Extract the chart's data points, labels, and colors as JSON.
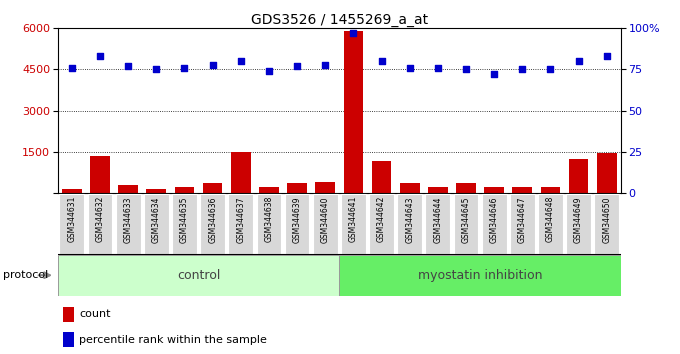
{
  "title": "GDS3526 / 1455269_a_at",
  "samples": [
    "GSM344631",
    "GSM344632",
    "GSM344633",
    "GSM344634",
    "GSM344635",
    "GSM344636",
    "GSM344637",
    "GSM344638",
    "GSM344639",
    "GSM344640",
    "GSM344641",
    "GSM344642",
    "GSM344643",
    "GSM344644",
    "GSM344645",
    "GSM344646",
    "GSM344647",
    "GSM344648",
    "GSM344649",
    "GSM344650"
  ],
  "counts": [
    150,
    1350,
    300,
    150,
    200,
    350,
    1500,
    200,
    350,
    400,
    5900,
    1150,
    350,
    200,
    350,
    200,
    200,
    200,
    1250,
    1450
  ],
  "percentile_ranks": [
    76,
    83,
    77,
    75,
    76,
    78,
    80,
    74,
    77,
    78,
    97,
    80,
    76,
    76,
    75,
    72,
    75,
    75,
    80,
    83
  ],
  "control_color": "#ccffcc",
  "myostatin_color": "#66ee66",
  "bar_color": "#cc0000",
  "dot_color": "#0000cc",
  "yticks_left": [
    0,
    1500,
    3000,
    4500,
    6000
  ],
  "yticks_right": [
    0,
    25,
    50,
    75,
    100
  ],
  "ylim_left": [
    0,
    6000
  ],
  "ylim_right": [
    0,
    100
  ],
  "protocol_label": "protocol",
  "control_label": "control",
  "myostatin_label": "myostatin inhibition",
  "legend_count": "count",
  "legend_percentile": "percentile rank within the sample",
  "n_control": 10,
  "n_total": 20
}
